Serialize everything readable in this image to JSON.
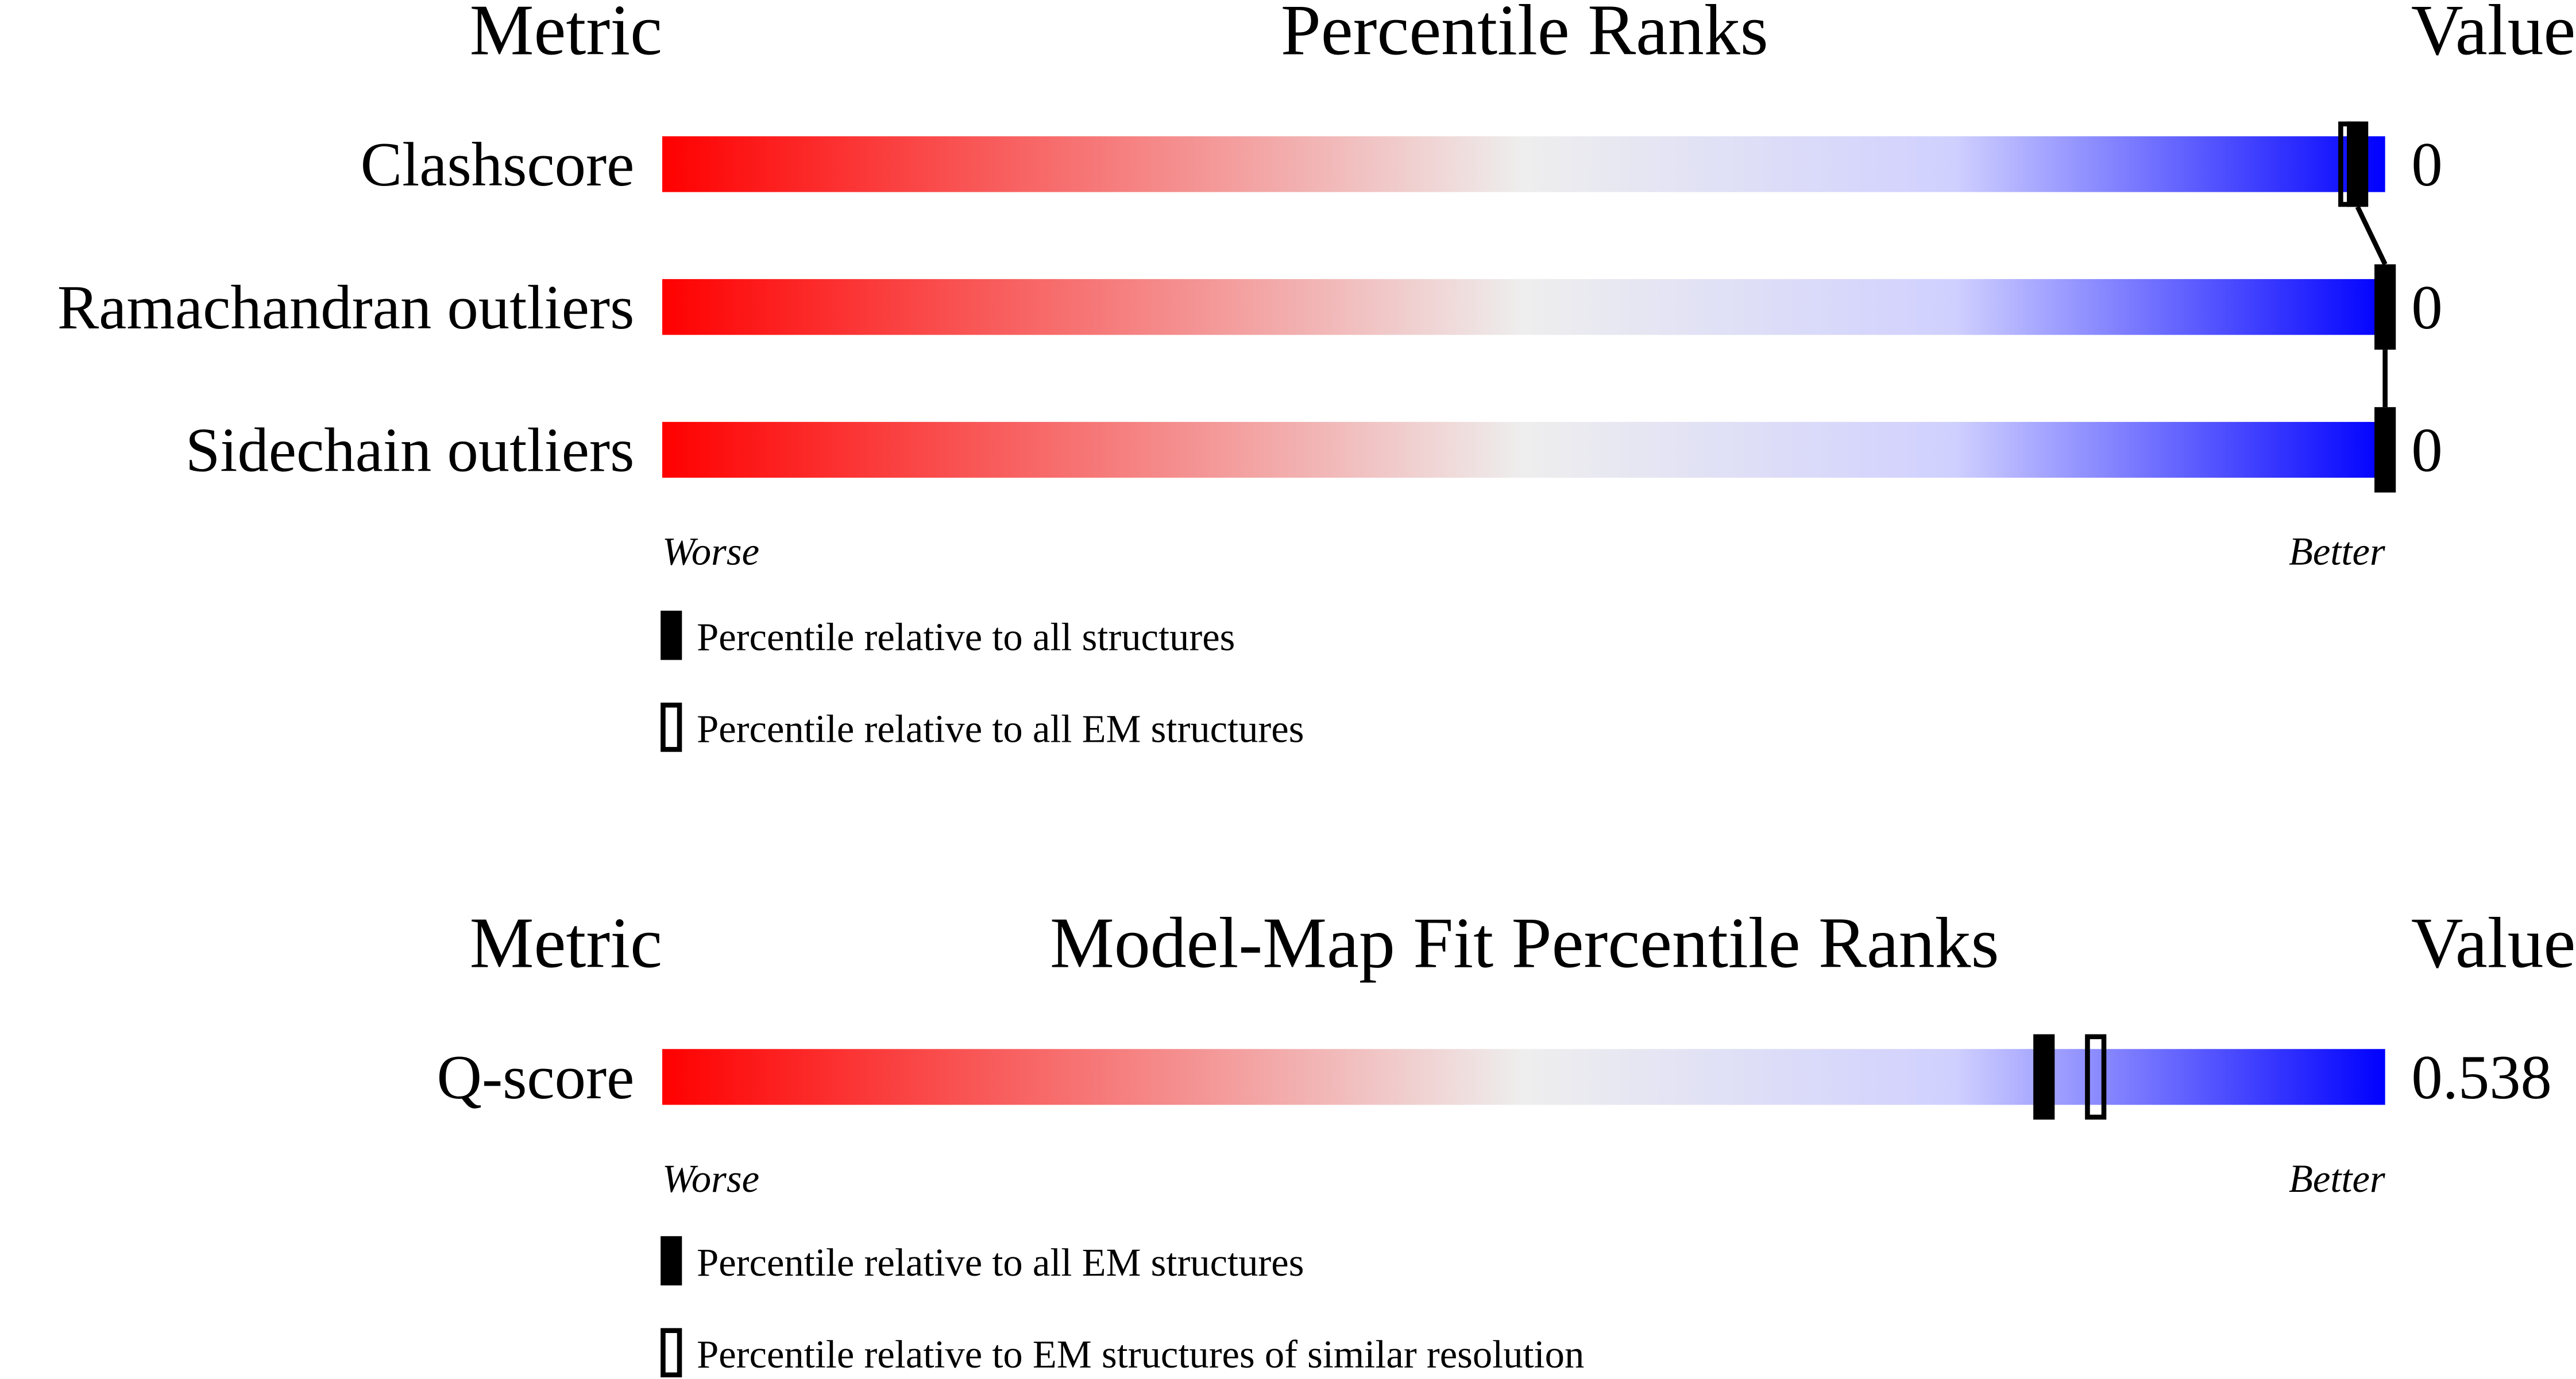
{
  "chart_data": [
    {
      "type": "bar",
      "title": "Percentile Ranks",
      "metric_header": "Metric",
      "value_header": "Value",
      "xlim": [
        0,
        100
      ],
      "low_label": "Worse",
      "high_label": "Better",
      "gradient_colors": [
        "#ff0000",
        "#eeeeee",
        "#0000ff"
      ],
      "legend": [
        {
          "marker": "filled",
          "label": "Percentile relative to all structures"
        },
        {
          "marker": "open",
          "label": "Percentile relative to all EM structures"
        }
      ],
      "connect_filled_markers": true,
      "rows": [
        {
          "metric": "Clashscore",
          "value": "0",
          "percentile_all": 98.4,
          "percentile_em": 97.9
        },
        {
          "metric": "Ramachandran outliers",
          "value": "0",
          "percentile_all": 100,
          "percentile_em": null
        },
        {
          "metric": "Sidechain outliers",
          "value": "0",
          "percentile_all": 100,
          "percentile_em": null
        }
      ]
    },
    {
      "type": "bar",
      "title": "Model-Map Fit Percentile Ranks",
      "metric_header": "Metric",
      "value_header": "Value",
      "xlim": [
        0,
        100
      ],
      "low_label": "Worse",
      "high_label": "Better",
      "gradient_colors": [
        "#ff0000",
        "#eeeeee",
        "#0000ff"
      ],
      "legend": [
        {
          "marker": "filled",
          "label": "Percentile relative to all EM structures"
        },
        {
          "marker": "open",
          "label": "Percentile relative to EM structures of similar resolution"
        }
      ],
      "connect_filled_markers": false,
      "rows": [
        {
          "metric": "Q-score",
          "value": "0.538",
          "percentile_all": 80.2,
          "percentile_em": 83.2
        }
      ]
    }
  ]
}
